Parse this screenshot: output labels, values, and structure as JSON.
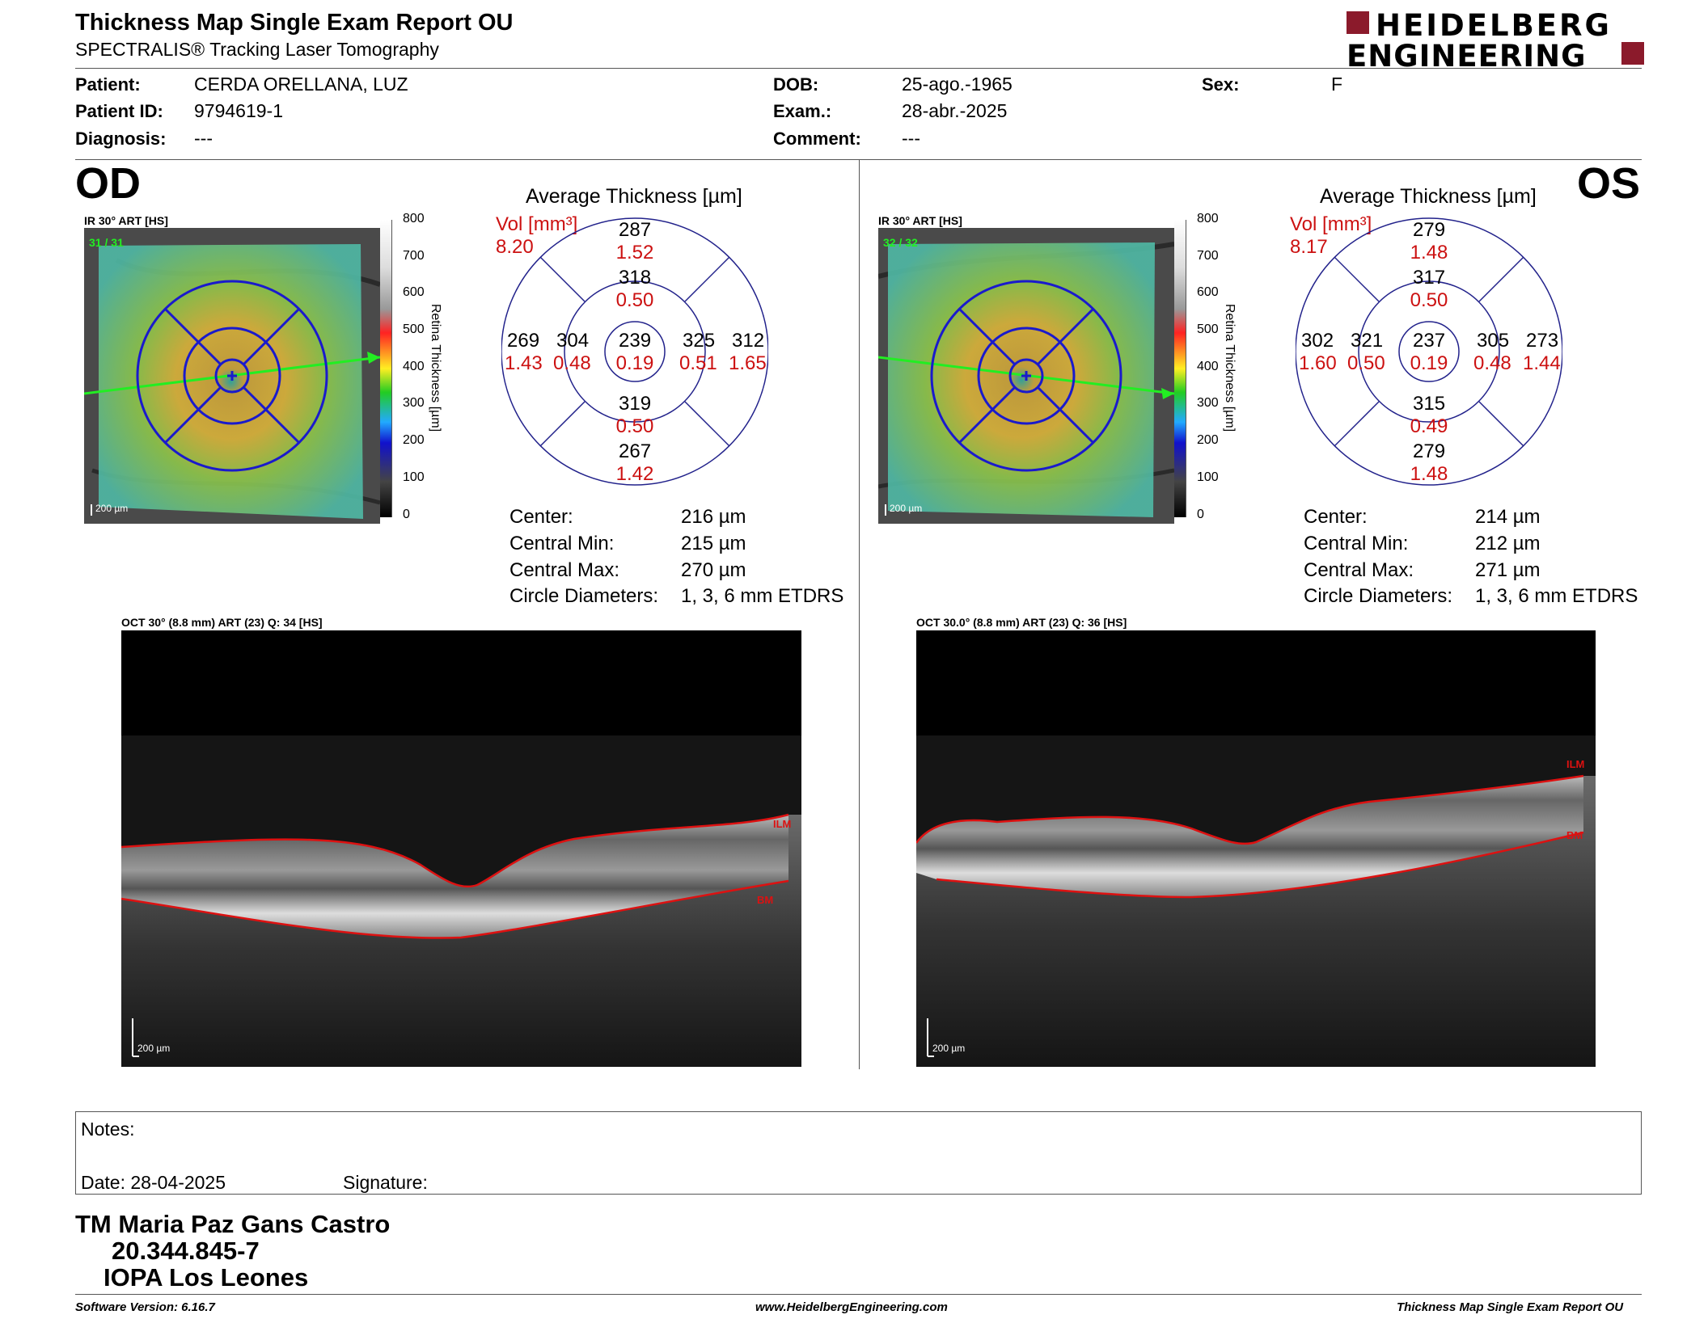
{
  "header": {
    "title": "Thickness Map Single Exam Report OU",
    "subtitle": "SPECTRALIS® Tracking Laser Tomography",
    "logo_line1": "HEIDELBERG",
    "logo_line2": "ENGINEERING",
    "brand_color": "#8b1a2b"
  },
  "patient": {
    "patient_label": "Patient:",
    "patient_value": "CERDA ORELLANA, LUZ",
    "id_label": "Patient ID:",
    "id_value": "9794619-1",
    "diagnosis_label": "Diagnosis:",
    "diagnosis_value": "---",
    "dob_label": "DOB:",
    "dob_value": "25-ago.-1965",
    "exam_label": "Exam.:",
    "exam_value": "28-abr.-2025",
    "comment_label": "Comment:",
    "comment_value": "---",
    "sex_label": "Sex:",
    "sex_value": "F"
  },
  "od": {
    "eye_label": "OD",
    "ir_label": "IR 30° ART [HS]",
    "ir_corner": "31 / 31",
    "scale_label": "200 µm",
    "avg_title": "Average Thickness [µm]",
    "vol_label": "Vol [mm³]",
    "vol_total": "8.20",
    "grid": {
      "sup_outer": "287",
      "sup_outer_vol": "1.52",
      "sup_inner": "318",
      "sup_inner_vol": "0.50",
      "temp_outer": "269",
      "temp_outer_vol": "1.43",
      "temp_inner": "304",
      "temp_inner_vol": "0.48",
      "center": "239",
      "center_vol": "0.19",
      "nas_inner": "325",
      "nas_inner_vol": "0.51",
      "nas_outer": "312",
      "nas_outer_vol": "1.65",
      "inf_inner": "319",
      "inf_inner_vol": "0.50",
      "inf_outer": "267",
      "inf_outer_vol": "1.42"
    },
    "stats": {
      "center_label": "Center:",
      "center_value": "216 µm",
      "min_label": "Central Min:",
      "min_value": "215 µm",
      "max_label": "Central Max:",
      "max_value": "270 µm",
      "diam_label": "Circle Diameters:",
      "diam_value": "1, 3, 6 mm ETDRS"
    },
    "oct_label": "OCT 30° (8.8 mm) ART (23) Q: 34 [HS]",
    "ilm_label": "ILM",
    "bm_label": "BM",
    "oct_scale": "200 µm"
  },
  "os": {
    "eye_label": "OS",
    "ir_label": "IR 30° ART [HS]",
    "ir_corner": "32 / 32",
    "scale_label": "200 µm",
    "avg_title": "Average Thickness [µm]",
    "vol_label": "Vol [mm³]",
    "vol_total": "8.17",
    "grid": {
      "sup_outer": "279",
      "sup_outer_vol": "1.48",
      "sup_inner": "317",
      "sup_inner_vol": "0.50",
      "temp_outer": "302",
      "temp_outer_vol": "1.60",
      "temp_inner": "321",
      "temp_inner_vol": "0.50",
      "center": "237",
      "center_vol": "0.19",
      "nas_inner": "305",
      "nas_inner_vol": "0.48",
      "nas_outer": "273",
      "nas_outer_vol": "1.44",
      "inf_inner": "315",
      "inf_inner_vol": "0.49",
      "inf_outer": "279",
      "inf_outer_vol": "1.48"
    },
    "stats": {
      "center_label": "Center:",
      "center_value": "214 µm",
      "min_label": "Central Min:",
      "min_value": "212 µm",
      "max_label": "Central Max:",
      "max_value": "271 µm",
      "diam_label": "Circle Diameters:",
      "diam_value": "1, 3, 6 mm ETDRS"
    },
    "oct_label": "OCT 30.0° (8.8 mm) ART (23) Q: 36 [HS]",
    "ilm_label": "ILM",
    "bm_label": "BM",
    "oct_scale": "200 µm"
  },
  "colorbar": {
    "axis_label": "Retina Thickness [µm]",
    "ticks": [
      "800",
      "700",
      "600",
      "500",
      "400",
      "300",
      "200",
      "100",
      "0"
    ]
  },
  "notes": {
    "notes_label": "Notes:",
    "date_label": "Date: 28-04-2025",
    "signature_label": "Signature:"
  },
  "signer": {
    "name": "TM Maria Paz Gans Castro",
    "rut": "20.344.845-7",
    "institution": "IOPA Los Leones"
  },
  "footer": {
    "software": "Software Version: 6.16.7",
    "website": "www.HeidelbergEngineering.com",
    "report_name": "Thickness Map Single Exam Report OU"
  }
}
